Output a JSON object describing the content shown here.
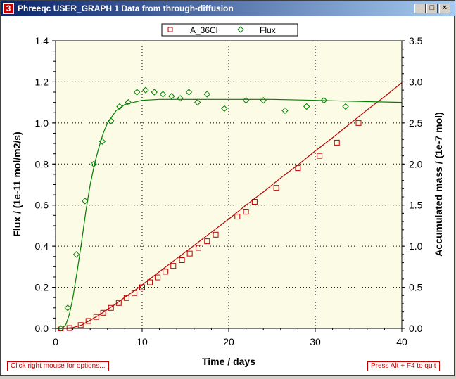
{
  "window": {
    "title": "Phreeqc USER_GRAPH 1 Data from through-diffusion",
    "app_icon": "phreeqc-app-icon",
    "app_icon_glyph": "3",
    "minimize_glyph": "_",
    "maximize_glyph": "□",
    "close_glyph": "×"
  },
  "status": {
    "options_hint": "Click right mouse for options...",
    "quit_hint": "Press Alt + F4 to quit"
  },
  "chart_data": {
    "type": "scatter",
    "xlabel": "Time / days",
    "ylabel_left": "Flux / (1e-11 mol/m2/s)",
    "ylabel_right": "Accumulated mass / (1e-7 mol)",
    "xlim": [
      0,
      40
    ],
    "ylim_left": [
      0,
      1.4
    ],
    "ylim_right": [
      0,
      3.5
    ],
    "x_ticks": [
      "0",
      "10",
      "20",
      "30",
      "40"
    ],
    "y_ticks_left": [
      "0.0",
      "0.2",
      "0.4",
      "0.6",
      "0.8",
      "1.0",
      "1.2",
      "1.4"
    ],
    "y_ticks_right": [
      "0.0",
      "0.5",
      "1.0",
      "1.5",
      "2.0",
      "2.5",
      "3.0",
      "3.5"
    ],
    "grid": "dotted",
    "legend_position": "top-center",
    "plot_background": "#fbfbe6",
    "series": [
      {
        "name": "A_36Cl",
        "axis": "right",
        "marker": "square",
        "color": "#c00000",
        "points": [
          [
            0.6,
            0.0
          ],
          [
            1.6,
            0.004
          ],
          [
            2.9,
            0.04
          ],
          [
            3.8,
            0.09
          ],
          [
            4.7,
            0.14
          ],
          [
            5.5,
            0.19
          ],
          [
            6.4,
            0.25
          ],
          [
            7.3,
            0.31
          ],
          [
            8.2,
            0.37
          ],
          [
            9.1,
            0.43
          ],
          [
            10.0,
            0.5
          ],
          [
            10.9,
            0.56
          ],
          [
            11.8,
            0.62
          ],
          [
            12.7,
            0.69
          ],
          [
            13.6,
            0.76
          ],
          [
            14.6,
            0.83
          ],
          [
            15.5,
            0.91
          ],
          [
            16.5,
            0.98
          ],
          [
            17.5,
            1.06
          ],
          [
            18.5,
            1.14
          ],
          [
            21.0,
            1.36
          ],
          [
            22.0,
            1.42
          ],
          [
            23.0,
            1.54
          ],
          [
            25.5,
            1.71
          ],
          [
            28.0,
            1.95
          ],
          [
            30.5,
            2.1
          ],
          [
            32.5,
            2.26
          ],
          [
            35.0,
            2.5
          ]
        ],
        "curve": [
          [
            0,
            0.0
          ],
          [
            1,
            0.0
          ],
          [
            2,
            0.01
          ],
          [
            3,
            0.04
          ],
          [
            4,
            0.1
          ],
          [
            5,
            0.16
          ],
          [
            6,
            0.23
          ],
          [
            7,
            0.3
          ],
          [
            8,
            0.38
          ],
          [
            9,
            0.45
          ],
          [
            10,
            0.53
          ],
          [
            12,
            0.69
          ],
          [
            14,
            0.85
          ],
          [
            16,
            1.01
          ],
          [
            18,
            1.17
          ],
          [
            20,
            1.33
          ],
          [
            22,
            1.5
          ],
          [
            24,
            1.66
          ],
          [
            26,
            1.83
          ],
          [
            28,
            1.99
          ],
          [
            30,
            2.16
          ],
          [
            32,
            2.32
          ],
          [
            34,
            2.49
          ],
          [
            36,
            2.66
          ],
          [
            38,
            2.82
          ],
          [
            40,
            2.99
          ]
        ]
      },
      {
        "name": "Flux",
        "axis": "left",
        "marker": "diamond",
        "color": "#008000",
        "points": [
          [
            0.6,
            0.0
          ],
          [
            1.4,
            0.1
          ],
          [
            2.4,
            0.36
          ],
          [
            3.4,
            0.62
          ],
          [
            4.4,
            0.8
          ],
          [
            5.4,
            0.91
          ],
          [
            6.4,
            1.01
          ],
          [
            7.4,
            1.08
          ],
          [
            8.4,
            1.1
          ],
          [
            9.4,
            1.15
          ],
          [
            10.4,
            1.16
          ],
          [
            11.4,
            1.15
          ],
          [
            12.4,
            1.14
          ],
          [
            13.4,
            1.13
          ],
          [
            14.4,
            1.12
          ],
          [
            15.4,
            1.15
          ],
          [
            16.4,
            1.1
          ],
          [
            17.5,
            1.14
          ],
          [
            19.5,
            1.07
          ],
          [
            22.0,
            1.11
          ],
          [
            24.0,
            1.11
          ],
          [
            26.5,
            1.06
          ],
          [
            29.0,
            1.08
          ],
          [
            31.0,
            1.11
          ],
          [
            33.5,
            1.08
          ]
        ],
        "curve": [
          [
            0,
            0.0
          ],
          [
            0.8,
            0.0
          ],
          [
            1.2,
            0.02
          ],
          [
            1.6,
            0.07
          ],
          [
            2.0,
            0.15
          ],
          [
            2.5,
            0.28
          ],
          [
            3.0,
            0.42
          ],
          [
            3.5,
            0.57
          ],
          [
            4.0,
            0.7
          ],
          [
            4.5,
            0.8
          ],
          [
            5.0,
            0.88
          ],
          [
            5.5,
            0.95
          ],
          [
            6.0,
            1.0
          ],
          [
            6.5,
            1.03
          ],
          [
            7.0,
            1.06
          ],
          [
            8.0,
            1.09
          ],
          [
            9.0,
            1.1
          ],
          [
            10.0,
            1.11
          ],
          [
            12.0,
            1.115
          ],
          [
            15.0,
            1.115
          ],
          [
            20.0,
            1.115
          ],
          [
            25.0,
            1.115
          ],
          [
            30.0,
            1.11
          ],
          [
            35.0,
            1.105
          ],
          [
            40.0,
            1.1
          ]
        ]
      }
    ]
  }
}
